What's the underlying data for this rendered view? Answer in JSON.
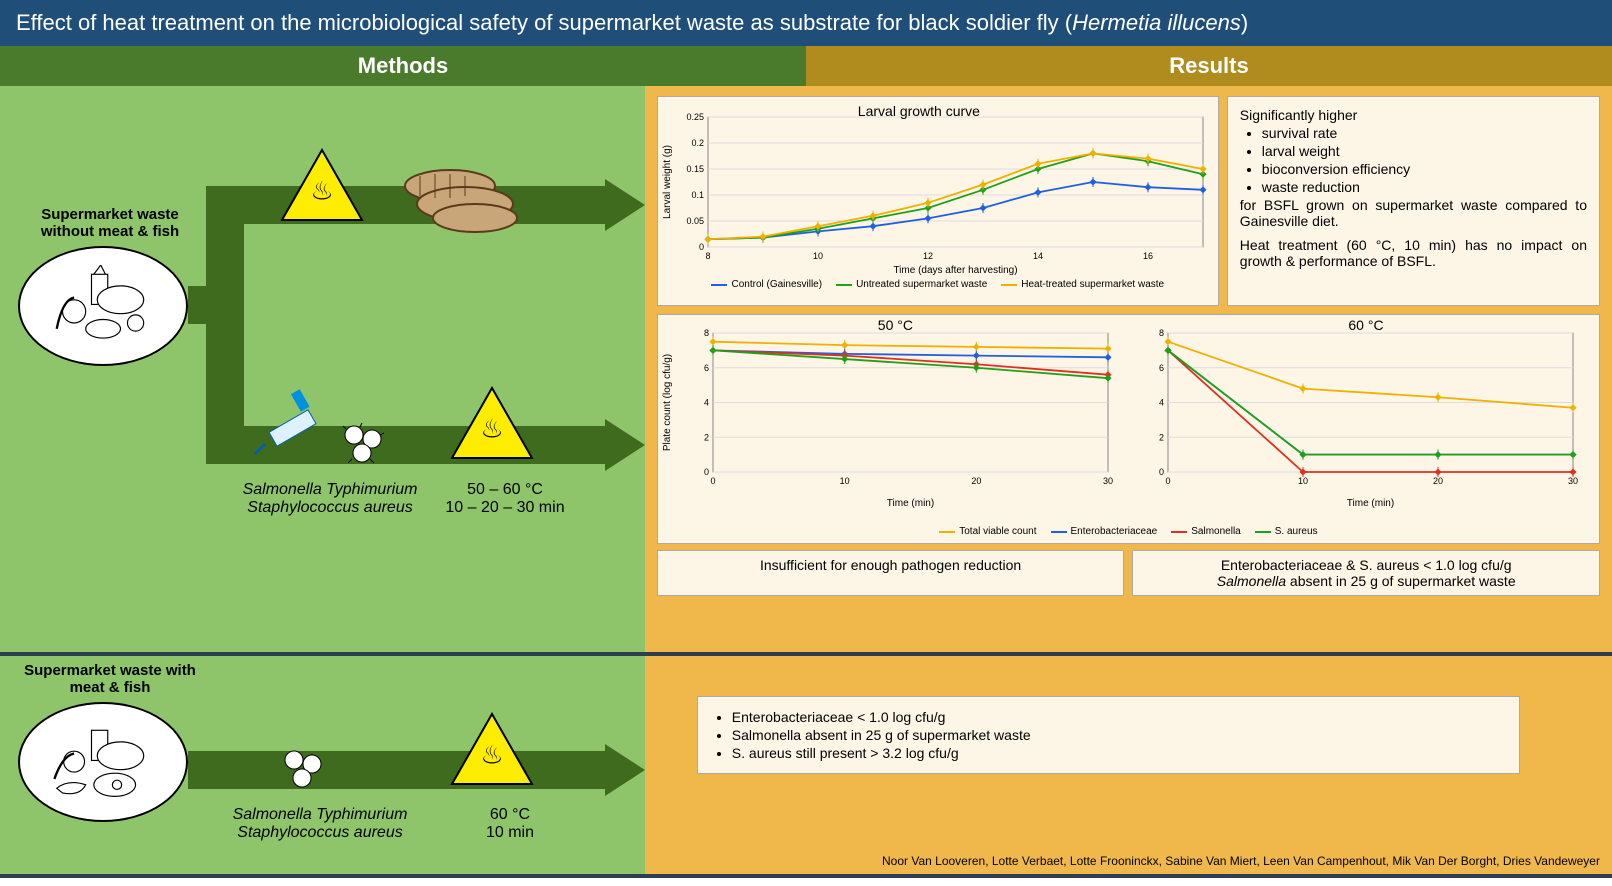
{
  "title_prefix": "Effect of heat treatment on the microbiological safety of supermarket waste as substrate for black soldier fly (",
  "title_species": "Hermetia illucens",
  "title_suffix": ")",
  "headers": {
    "methods": "Methods",
    "results": "Results"
  },
  "colors": {
    "title_bg": "#1f4e79",
    "methods_bg": "#8fc56a",
    "results_bg": "#f0b84a",
    "methods_hdr": "#4a7a2c",
    "results_hdr": "#b08c1e",
    "arrow": "#3f6b1f",
    "chart_bg": "#fdf5e6",
    "series_control": "#2060e0",
    "series_untreated": "#1fa017",
    "series_heated": "#f0b000",
    "series_tvc": "#f0b000",
    "series_entero": "#2060e0",
    "series_salmonella": "#e03020",
    "series_saureus": "#1fa017"
  },
  "row1": {
    "waste_label": "Supermarket waste without meat & fish",
    "bacteria": {
      "line1": "Salmonella Typhimurium",
      "line2": "Staphylococcus aureus"
    },
    "temp": {
      "line1": "50 – 60 °C",
      "line2": "10 – 20 – 30 min"
    },
    "growth_chart": {
      "title": "Larval growth curve",
      "xlabel": "Time (days after harvesting)",
      "ylabel": "Larval weight (g)",
      "xlim": [
        8,
        17
      ],
      "xticks": [
        8,
        10,
        12,
        14,
        16
      ],
      "ylim": [
        0,
        0.25
      ],
      "yticks": [
        0.0,
        0.05,
        0.1,
        0.15,
        0.2,
        0.25
      ],
      "series": [
        {
          "name": "Control (Gainesville)",
          "color": "#2060e0",
          "x": [
            8,
            9,
            10,
            11,
            12,
            13,
            14,
            15,
            16,
            17
          ],
          "y": [
            0.015,
            0.018,
            0.03,
            0.04,
            0.055,
            0.075,
            0.105,
            0.125,
            0.115,
            0.11
          ]
        },
        {
          "name": "Untreated supermarket waste",
          "color": "#1fa017",
          "x": [
            8,
            9,
            10,
            11,
            12,
            13,
            14,
            15,
            16,
            17
          ],
          "y": [
            0.015,
            0.018,
            0.035,
            0.055,
            0.075,
            0.11,
            0.15,
            0.18,
            0.165,
            0.14
          ]
        },
        {
          "name": "Heat-treated supermarket waste",
          "color": "#f0b000",
          "x": [
            8,
            9,
            10,
            11,
            12,
            13,
            14,
            15,
            16,
            17
          ],
          "y": [
            0.015,
            0.02,
            0.04,
            0.06,
            0.085,
            0.12,
            0.16,
            0.18,
            0.17,
            0.15
          ]
        }
      ]
    },
    "growth_text": {
      "intro": "Significantly higher",
      "bullets": [
        "survival rate",
        "larval weight",
        "bioconversion efficiency",
        "waste reduction"
      ],
      "after": "for BSFL grown on supermarket waste compared to Gainesville diet.",
      "final": "Heat treatment (60 °C, 10 min) has no impact on growth & performance of BSFL."
    },
    "plate50": {
      "title": "50 °C",
      "xlabel": "Time (min)",
      "ylabel": "Plate count (log cfu/g)",
      "xlim": [
        0,
        30
      ],
      "xticks": [
        0,
        10,
        20,
        30
      ],
      "ylim": [
        0,
        8
      ],
      "yticks": [
        0,
        2,
        4,
        6,
        8
      ],
      "series": [
        {
          "name": "Total viable count",
          "color": "#f0b000",
          "x": [
            0,
            10,
            20,
            30
          ],
          "y": [
            7.5,
            7.3,
            7.2,
            7.1
          ]
        },
        {
          "name": "Enterobacteriaceae",
          "color": "#2060e0",
          "x": [
            0,
            10,
            20,
            30
          ],
          "y": [
            7.0,
            6.8,
            6.7,
            6.6
          ]
        },
        {
          "name": "Salmonella",
          "color": "#e03020",
          "x": [
            0,
            10,
            20,
            30
          ],
          "y": [
            7.0,
            6.7,
            6.2,
            5.6
          ]
        },
        {
          "name": "S. aureus",
          "color": "#1fa017",
          "x": [
            0,
            10,
            20,
            30
          ],
          "y": [
            7.0,
            6.5,
            6.0,
            5.4
          ]
        }
      ]
    },
    "plate60": {
      "title": "60 °C",
      "xlim": [
        0,
        30
      ],
      "xticks": [
        0,
        10,
        20,
        30
      ],
      "ylim": [
        0,
        8
      ],
      "yticks": [
        0,
        2,
        4,
        6,
        8
      ],
      "series": [
        {
          "name": "Total viable count",
          "color": "#f0b000",
          "x": [
            0,
            10,
            20,
            30
          ],
          "y": [
            7.5,
            4.8,
            4.3,
            3.7
          ]
        },
        {
          "name": "Enterobacteriaceae",
          "color": "#2060e0",
          "x": [
            0,
            10,
            20,
            30
          ],
          "y": [
            7.0,
            1.0,
            1.0,
            1.0
          ]
        },
        {
          "name": "Salmonella",
          "color": "#e03020",
          "x": [
            0,
            10,
            20,
            30
          ],
          "y": [
            7.0,
            0.0,
            0.0,
            0.0
          ]
        },
        {
          "name": "S. aureus",
          "color": "#1fa017",
          "x": [
            0,
            10,
            20,
            30
          ],
          "y": [
            7.0,
            1.0,
            1.0,
            1.0
          ]
        }
      ]
    },
    "plate_legend": [
      "Total viable count",
      "Enterobacteriaceae",
      "Salmonella",
      "S. aureus"
    ],
    "plate_legend_colors": [
      "#f0b000",
      "#2060e0",
      "#e03020",
      "#1fa017"
    ],
    "caption50": "Insufficient for enough pathogen reduction",
    "caption60a": "Enterobacteriaceae & S. aureus < 1.0 log cfu/g",
    "caption60b": "Salmonella absent in 25 g of supermarket waste"
  },
  "row2": {
    "waste_label": "Supermarket waste with meat & fish",
    "bacteria": {
      "line1": "Salmonella Typhimurium",
      "line2": "Staphylococcus aureus"
    },
    "temp": {
      "line1": "60 °C",
      "line2": "10 min"
    },
    "bullets": [
      "Enterobacteriaceae < 1.0 log cfu/g",
      "Salmonella absent in 25 g of supermarket waste",
      "S. aureus still present > 3.2 log cfu/g"
    ]
  },
  "authors": "Noor Van Looveren, Lotte Verbaet, Lotte Frooninckx, Sabine Van Miert, Leen Van Campenhout, Mik Van Der Borght, Dries Vandeweyer"
}
